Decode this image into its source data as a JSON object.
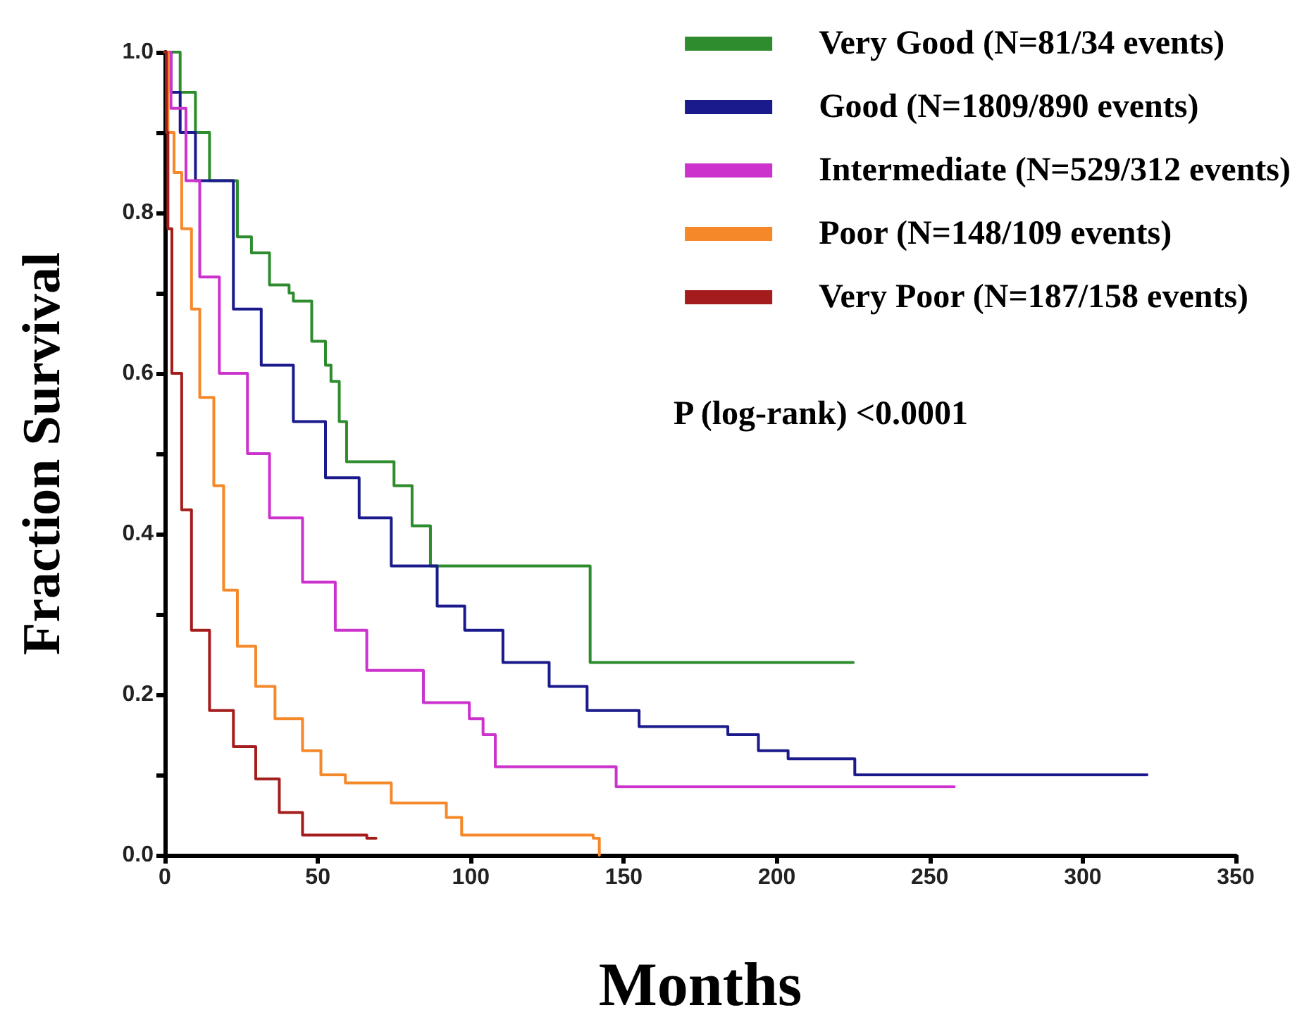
{
  "chart_data": {
    "type": "step",
    "xlabel": "Months",
    "ylabel": "Fraction Survival",
    "xlim": [
      0,
      350
    ],
    "xticks": [
      0,
      50,
      100,
      150,
      200,
      250,
      300,
      350
    ],
    "ylim": [
      0,
      1
    ],
    "yticks": [
      {
        "value": 0,
        "label": "0.0"
      },
      {
        "value": 0.1,
        "label": null
      },
      {
        "value": 0.2,
        "label": "0.2"
      },
      {
        "value": 0.3,
        "label": null
      },
      {
        "value": 0.4,
        "label": "0.4"
      },
      {
        "value": 0.5,
        "label": null
      },
      {
        "value": 0.6,
        "label": "0.6"
      },
      {
        "value": 0.7,
        "label": null
      },
      {
        "value": 0.8,
        "label": "0.8"
      },
      {
        "value": 0.9,
        "label": null
      },
      {
        "value": 1,
        "label": "1.0"
      }
    ],
    "grid": false,
    "legend": "top right",
    "marker": "none",
    "line_style": "solid",
    "annotations": [
      "P (log-rank) <0.0001"
    ],
    "series": [
      {
        "name": "Very Good (N=81/34 events)",
        "color": "#2e8b2e",
        "x": [
          0,
          5,
          10,
          14.6,
          23.7,
          28.3,
          34.2,
          40.6,
          42,
          48,
          52.5,
          54.3,
          57,
          59.4,
          74.9,
          80.8,
          86.8,
          139,
          225
        ],
        "values": [
          1,
          0.95,
          0.9,
          0.84,
          0.77,
          0.75,
          0.71,
          0.7,
          0.69,
          0.64,
          0.61,
          0.59,
          0.54,
          0.49,
          0.46,
          0.41,
          0.36,
          0.24,
          0.24
        ]
      },
      {
        "name": "Good (N=1809/890 events)",
        "color": "#1a1a8c",
        "x": [
          0,
          2,
          5,
          10,
          22.4,
          31.5,
          42,
          52.5,
          63.5,
          74,
          89,
          98,
          110.5,
          125.6,
          138,
          155,
          184,
          194,
          203.7,
          225.5,
          321
        ],
        "values": [
          1,
          0.95,
          0.9,
          0.84,
          0.68,
          0.61,
          0.54,
          0.47,
          0.42,
          0.36,
          0.31,
          0.28,
          0.24,
          0.21,
          0.18,
          0.16,
          0.15,
          0.13,
          0.12,
          0.1,
          0.1
        ]
      },
      {
        "name": "Intermediate (N=529/312 events)",
        "color": "#cc33cc",
        "x": [
          0,
          2,
          6.9,
          11.4,
          17.8,
          27,
          34.2,
          45,
          55.7,
          66,
          80,
          84.5,
          99.5,
          104,
          108,
          147.5,
          258
        ],
        "values": [
          1,
          0.93,
          0.84,
          0.72,
          0.6,
          0.5,
          0.42,
          0.34,
          0.28,
          0.23,
          0.23,
          0.19,
          0.17,
          0.15,
          0.11,
          0.085,
          0.085
        ]
      },
      {
        "name": "Poor (N=148/109 events)",
        "color": "#f5892a",
        "x": [
          0,
          1,
          3,
          5.5,
          8.7,
          11.4,
          16,
          19.2,
          23.7,
          29.7,
          36,
          45,
          51,
          59,
          74,
          92,
          97,
          140,
          142
        ],
        "values": [
          1,
          0.9,
          0.85,
          0.78,
          0.68,
          0.57,
          0.46,
          0.33,
          0.26,
          0.21,
          0.17,
          0.13,
          0.1,
          0.09,
          0.065,
          0.047,
          0.025,
          0.021,
          0
        ]
      },
      {
        "name": "Very Poor (N=187/158 events)",
        "color": "#a51c1c",
        "x": [
          0,
          0.5,
          1,
          2.3,
          5.5,
          8.7,
          14.6,
          22.4,
          29.7,
          37.4,
          45,
          66,
          69
        ],
        "values": [
          1,
          0.9,
          0.78,
          0.6,
          0.43,
          0.28,
          0.18,
          0.135,
          0.095,
          0.053,
          0.025,
          0.021,
          0.021
        ]
      }
    ]
  }
}
